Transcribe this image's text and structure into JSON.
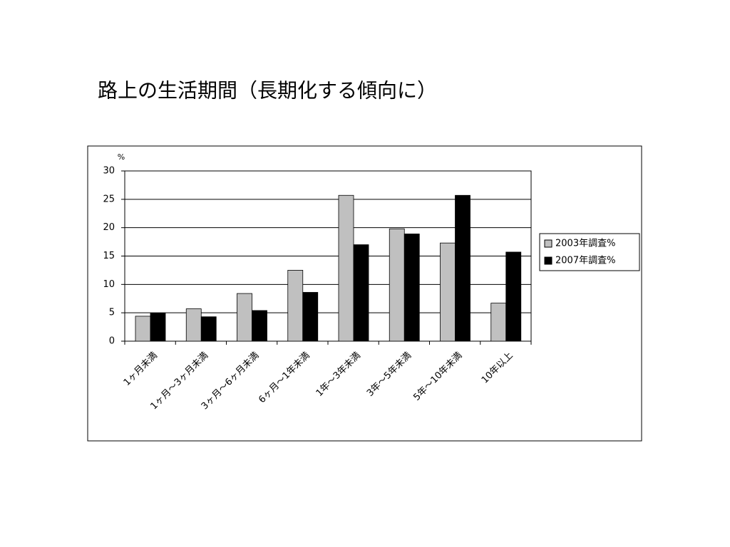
{
  "chart_data": {
    "type": "bar",
    "title": "路上の生活期間（長期化する傾向に）",
    "y_label": "%",
    "categories": [
      "1ヶ月未満",
      "1ヶ月～3ヶ月未満",
      "3ヶ月～6ヶ月未満",
      "6ヶ月～1年未満",
      "1年～3年未満",
      "3年～5年未満",
      "5年～10年未満",
      "10年以上"
    ],
    "series": [
      {
        "name": "2003年調査%",
        "color": "#c0c0c0",
        "values": [
          4.4,
          5.7,
          8.4,
          12.5,
          25.7,
          19.8,
          17.3,
          6.7
        ]
      },
      {
        "name": "2007年調査%",
        "color": "#000000",
        "values": [
          4.9,
          4.3,
          5.4,
          8.6,
          17.0,
          18.9,
          25.7,
          15.7
        ]
      }
    ],
    "ylim": [
      0,
      30
    ],
    "yticks": [
      0,
      5,
      10,
      15,
      20,
      25,
      30
    ],
    "grid": true,
    "legend": "right"
  }
}
